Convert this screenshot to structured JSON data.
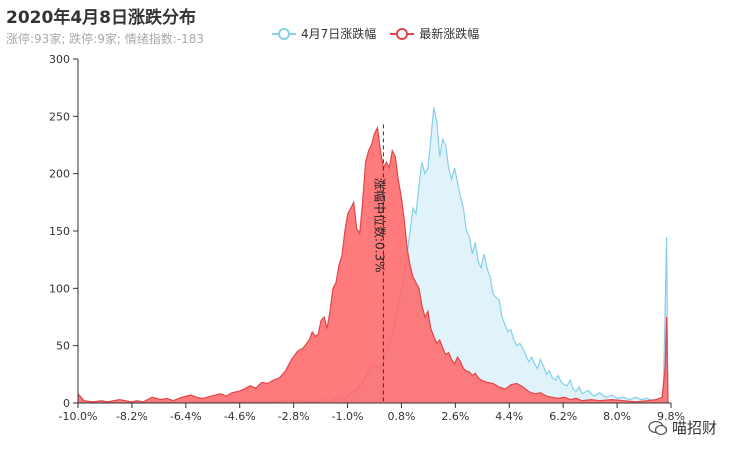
{
  "title": "2020年4月8日涨跌分布",
  "subtitle": "涨停:93家; 跌停:9家; 情绪指数:-183",
  "watermark": "喵招财",
  "chart_data": {
    "type": "area",
    "title": "2020年4月8日涨跌分布",
    "subtitle": "涨停:93家; 跌停:9家; 情绪指数:-183",
    "xlabel": "",
    "ylabel": "",
    "xlim": [
      -10.0,
      10.0
    ],
    "ylim": [
      0,
      300
    ],
    "x_ticks": [
      "-10.0%",
      "-8.2%",
      "-6.4%",
      "-4.6%",
      "-2.8%",
      "-1.0%",
      "0.8%",
      "2.6%",
      "4.4%",
      "6.2%",
      "8.0%",
      "9.8%"
    ],
    "y_ticks": [
      0,
      50,
      100,
      150,
      200,
      250,
      300
    ],
    "legend_position": "top-center",
    "grid": false,
    "annotation": {
      "label": "涨幅中位数:0.3%",
      "x": 0.3
    },
    "series": [
      {
        "name": "4月7日涨跌幅",
        "color": "#87ceeb",
        "fill": "rgba(135,206,235,0.25)",
        "points": [
          [
            -10.0,
            0
          ],
          [
            -9.5,
            1
          ],
          [
            -9.0,
            1
          ],
          [
            -8.5,
            0
          ],
          [
            -8.0,
            0
          ],
          [
            -7.5,
            1
          ],
          [
            -7.0,
            1
          ],
          [
            -6.5,
            0
          ],
          [
            -6.0,
            1
          ],
          [
            -5.5,
            1
          ],
          [
            -5.0,
            1
          ],
          [
            -4.5,
            1
          ],
          [
            -4.0,
            1
          ],
          [
            -3.5,
            1
          ],
          [
            -3.0,
            2
          ],
          [
            -2.5,
            2
          ],
          [
            -2.0,
            1
          ],
          [
            -1.8,
            3
          ],
          [
            -1.5,
            2
          ],
          [
            -1.2,
            5
          ],
          [
            -1.0,
            3
          ],
          [
            -0.8,
            8
          ],
          [
            -0.6,
            12
          ],
          [
            -0.4,
            18
          ],
          [
            -0.2,
            28
          ],
          [
            0.0,
            34
          ],
          [
            0.2,
            30
          ],
          [
            0.4,
            45
          ],
          [
            0.6,
            60
          ],
          [
            0.8,
            85
          ],
          [
            1.0,
            110
          ],
          [
            1.1,
            130
          ],
          [
            1.2,
            150
          ],
          [
            1.3,
            170
          ],
          [
            1.4,
            165
          ],
          [
            1.5,
            190
          ],
          [
            1.6,
            210
          ],
          [
            1.7,
            200
          ],
          [
            1.8,
            205
          ],
          [
            1.9,
            230
          ],
          [
            2.0,
            258
          ],
          [
            2.1,
            245
          ],
          [
            2.2,
            215
          ],
          [
            2.3,
            230
          ],
          [
            2.4,
            225
          ],
          [
            2.5,
            205
          ],
          [
            2.6,
            195
          ],
          [
            2.7,
            205
          ],
          [
            2.8,
            192
          ],
          [
            2.9,
            180
          ],
          [
            3.0,
            170
          ],
          [
            3.1,
            150
          ],
          [
            3.2,
            145
          ],
          [
            3.3,
            130
          ],
          [
            3.4,
            140
          ],
          [
            3.5,
            123
          ],
          [
            3.6,
            118
          ],
          [
            3.7,
            130
          ],
          [
            3.8,
            117
          ],
          [
            3.9,
            110
          ],
          [
            4.0,
            95
          ],
          [
            4.1,
            92
          ],
          [
            4.2,
            90
          ],
          [
            4.3,
            75
          ],
          [
            4.4,
            68
          ],
          [
            4.5,
            62
          ],
          [
            4.6,
            64
          ],
          [
            4.7,
            55
          ],
          [
            4.8,
            50
          ],
          [
            4.9,
            52
          ],
          [
            5.0,
            48
          ],
          [
            5.1,
            42
          ],
          [
            5.2,
            36
          ],
          [
            5.3,
            40
          ],
          [
            5.4,
            34
          ],
          [
            5.5,
            30
          ],
          [
            5.6,
            38
          ],
          [
            5.7,
            32
          ],
          [
            5.8,
            25
          ],
          [
            5.9,
            28
          ],
          [
            6.0,
            22
          ],
          [
            6.1,
            20
          ],
          [
            6.2,
            24
          ],
          [
            6.3,
            18
          ],
          [
            6.4,
            16
          ],
          [
            6.5,
            15
          ],
          [
            6.6,
            20
          ],
          [
            6.7,
            12
          ],
          [
            6.8,
            10
          ],
          [
            6.9,
            14
          ],
          [
            7.0,
            8
          ],
          [
            7.2,
            11
          ],
          [
            7.4,
            6
          ],
          [
            7.6,
            9
          ],
          [
            7.8,
            5
          ],
          [
            8.0,
            7
          ],
          [
            8.2,
            4
          ],
          [
            8.4,
            5
          ],
          [
            8.6,
            3
          ],
          [
            8.8,
            5
          ],
          [
            9.0,
            3
          ],
          [
            9.2,
            4
          ],
          [
            9.4,
            2
          ],
          [
            9.5,
            3
          ],
          [
            9.6,
            2
          ],
          [
            9.7,
            3
          ],
          [
            9.75,
            20
          ],
          [
            9.8,
            80
          ],
          [
            9.85,
            145
          ],
          [
            9.9,
            0
          ]
        ]
      },
      {
        "name": "最新涨跌幅",
        "color": "#e0464b",
        "fill": "rgba(255,100,100,0.85)",
        "points": [
          [
            -10.0,
            8
          ],
          [
            -9.8,
            2
          ],
          [
            -9.5,
            1
          ],
          [
            -9.2,
            2
          ],
          [
            -9.0,
            1
          ],
          [
            -8.6,
            3
          ],
          [
            -8.2,
            1
          ],
          [
            -8.0,
            2
          ],
          [
            -7.8,
            1
          ],
          [
            -7.5,
            5
          ],
          [
            -7.2,
            3
          ],
          [
            -7.0,
            4
          ],
          [
            -6.8,
            2
          ],
          [
            -6.5,
            5
          ],
          [
            -6.2,
            7
          ],
          [
            -6.0,
            5
          ],
          [
            -5.8,
            4
          ],
          [
            -5.5,
            6
          ],
          [
            -5.2,
            8
          ],
          [
            -5.0,
            6
          ],
          [
            -4.8,
            9
          ],
          [
            -4.6,
            10
          ],
          [
            -4.4,
            12
          ],
          [
            -4.2,
            15
          ],
          [
            -4.0,
            13
          ],
          [
            -3.8,
            18
          ],
          [
            -3.6,
            17
          ],
          [
            -3.4,
            20
          ],
          [
            -3.2,
            22
          ],
          [
            -3.0,
            28
          ],
          [
            -2.8,
            38
          ],
          [
            -2.6,
            45
          ],
          [
            -2.4,
            48
          ],
          [
            -2.2,
            55
          ],
          [
            -2.1,
            62
          ],
          [
            -2.0,
            58
          ],
          [
            -1.9,
            60
          ],
          [
            -1.8,
            72
          ],
          [
            -1.7,
            75
          ],
          [
            -1.6,
            65
          ],
          [
            -1.5,
            80
          ],
          [
            -1.4,
            100
          ],
          [
            -1.3,
            105
          ],
          [
            -1.2,
            120
          ],
          [
            -1.1,
            128
          ],
          [
            -1.0,
            150
          ],
          [
            -0.9,
            165
          ],
          [
            -0.8,
            170
          ],
          [
            -0.7,
            175
          ],
          [
            -0.6,
            152
          ],
          [
            -0.5,
            148
          ],
          [
            -0.4,
            175
          ],
          [
            -0.3,
            210
          ],
          [
            -0.2,
            220
          ],
          [
            -0.1,
            225
          ],
          [
            0.0,
            235
          ],
          [
            0.1,
            240
          ],
          [
            0.2,
            220
          ],
          [
            0.3,
            205
          ],
          [
            0.4,
            210
          ],
          [
            0.5,
            205
          ],
          [
            0.6,
            220
          ],
          [
            0.7,
            215
          ],
          [
            0.8,
            195
          ],
          [
            0.9,
            180
          ],
          [
            1.0,
            160
          ],
          [
            1.1,
            135
          ],
          [
            1.2,
            120
          ],
          [
            1.3,
            110
          ],
          [
            1.4,
            105
          ],
          [
            1.5,
            100
          ],
          [
            1.6,
            85
          ],
          [
            1.7,
            75
          ],
          [
            1.8,
            80
          ],
          [
            1.9,
            65
          ],
          [
            2.0,
            58
          ],
          [
            2.1,
            52
          ],
          [
            2.2,
            55
          ],
          [
            2.3,
            48
          ],
          [
            2.4,
            42
          ],
          [
            2.5,
            44
          ],
          [
            2.6,
            38
          ],
          [
            2.7,
            34
          ],
          [
            2.8,
            40
          ],
          [
            2.9,
            36
          ],
          [
            3.0,
            30
          ],
          [
            3.1,
            28
          ],
          [
            3.2,
            27
          ],
          [
            3.3,
            24
          ],
          [
            3.4,
            26
          ],
          [
            3.5,
            22
          ],
          [
            3.6,
            20
          ],
          [
            3.8,
            18
          ],
          [
            4.0,
            17
          ],
          [
            4.2,
            14
          ],
          [
            4.4,
            12
          ],
          [
            4.6,
            16
          ],
          [
            4.8,
            17
          ],
          [
            5.0,
            14
          ],
          [
            5.2,
            10
          ],
          [
            5.4,
            8
          ],
          [
            5.6,
            9
          ],
          [
            5.8,
            6
          ],
          [
            6.0,
            5
          ],
          [
            6.2,
            4
          ],
          [
            6.4,
            5
          ],
          [
            6.6,
            3
          ],
          [
            6.8,
            4
          ],
          [
            7.0,
            2
          ],
          [
            7.3,
            3
          ],
          [
            7.6,
            2
          ],
          [
            8.0,
            3
          ],
          [
            8.4,
            2
          ],
          [
            8.8,
            1
          ],
          [
            9.2,
            2
          ],
          [
            9.5,
            3
          ],
          [
            9.7,
            5
          ],
          [
            9.8,
            30
          ],
          [
            9.85,
            75
          ],
          [
            9.9,
            0
          ]
        ]
      }
    ]
  }
}
